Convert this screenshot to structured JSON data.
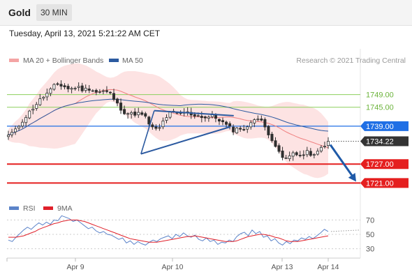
{
  "header": {
    "instrument": "Gold",
    "timeframe": "30 MIN",
    "datetime": "Tuesday, April 13, 2021 5:21:22 AM CET"
  },
  "legend": {
    "ma20": "MA 20 + Bollinger Bands",
    "ma50": "MA 50",
    "copyright": "Research © 2021 Trading Central",
    "rsi": "RSI",
    "rsi_ma": "9MA"
  },
  "colors": {
    "resistance": "#1f6fe5",
    "support": "#e51f1f",
    "pivot": "#333333",
    "green_level": "#8ccf5c",
    "ma20": "#f08080",
    "ma50": "#2c5aa0",
    "bollinger_fill": "#fde0e0",
    "candle_body": "#2f2f2f",
    "rsi_line": "#5b83c9",
    "rsi_ma_line": "#e0202a"
  },
  "chart_data": [
    {
      "type": "candlestick",
      "ylim": [
        1716,
        1752
      ],
      "x_tick_labels": [
        "Apr 9",
        "Apr 10",
        "Apr 13",
        "Apr 14"
      ],
      "grid": false,
      "legend_position": "top-left",
      "price_levels": [
        {
          "label": "1749.00",
          "value": 1749.0,
          "style": "green"
        },
        {
          "label": "1745.00",
          "value": 1745.0,
          "style": "green"
        },
        {
          "label": "1739.00",
          "value": 1739.0,
          "style": "resistance"
        },
        {
          "label": "1734.22",
          "value": 1734.22,
          "style": "last-price"
        },
        {
          "label": "1727.00",
          "value": 1727.0,
          "style": "support"
        },
        {
          "label": "1721.00",
          "value": 1721.0,
          "style": "support"
        }
      ],
      "close_path": [
        1736.2,
        1737.5,
        1740.6,
        1743.2,
        1745.8,
        1748.1,
        1749.9,
        1752.3,
        1751.8,
        1750.6,
        1751.5,
        1750.5,
        1751.0,
        1749.7,
        1750.1,
        1749.3,
        1745.9,
        1743.5,
        1742.8,
        1743.1,
        1742.2,
        1738.6,
        1737.6,
        1741.5,
        1743.4,
        1742.7,
        1743.5,
        1742.7,
        1742.3,
        1741.7,
        1742.1,
        1741.0,
        1739.3,
        1737.7,
        1738.5,
        1737.9,
        1741.7,
        1741.1,
        1737.6,
        1734.0,
        1729.3,
        1728.6,
        1731.0,
        1729.4,
        1730.8,
        1729.5,
        1732.2,
        1734.22
      ],
      "patterns": [
        {
          "name": "symmetrical-triangle",
          "upper_line": [
            [
              0.44,
              1743.9
            ],
            [
              0.68,
              1742.3
            ]
          ],
          "lower_line": [
            [
              0.4,
              1730.2
            ],
            [
              0.67,
              1738.8
            ]
          ]
        }
      ],
      "forecast_arrow": {
        "from": 1734.0,
        "to": 1721.0
      }
    },
    {
      "type": "line",
      "ylim": [
        15,
        85
      ],
      "tick_labels": [
        "70",
        "50",
        "30"
      ],
      "y_ticks": [
        70,
        50,
        30
      ],
      "series": [
        {
          "name": "RSI",
          "values": [
            42,
            40,
            46,
            51,
            56,
            60,
            57,
            62,
            66,
            63,
            67,
            64,
            70,
            69,
            76,
            74,
            72,
            68,
            70,
            66,
            62,
            58,
            60,
            55,
            52,
            54,
            50,
            49,
            46,
            43,
            45,
            38,
            41,
            36,
            40,
            37,
            35,
            39,
            42,
            40,
            44,
            46,
            48,
            44,
            50,
            47,
            52,
            48,
            46,
            49,
            43,
            41,
            45,
            40,
            42,
            36,
            39,
            38,
            42,
            40,
            47,
            51,
            53,
            48,
            56,
            51,
            54,
            46,
            48,
            41,
            44,
            38,
            35,
            40,
            37,
            42,
            41,
            45,
            43,
            47,
            44,
            48,
            52,
            57,
            54
          ]
        },
        {
          "name": "9MA",
          "values": [
            46,
            46,
            46,
            47,
            48,
            50,
            52,
            54,
            57,
            59,
            61,
            63,
            65,
            66,
            68,
            69,
            70,
            70,
            70,
            69,
            68,
            66,
            64,
            62,
            60,
            58,
            56,
            54,
            52,
            50,
            48,
            46,
            44,
            43,
            42,
            41,
            40,
            39,
            39,
            39,
            40,
            41,
            42,
            43,
            44,
            45,
            46,
            47,
            47,
            48,
            47,
            46,
            45,
            44,
            43,
            42,
            41,
            40,
            40,
            40,
            41,
            43,
            45,
            47,
            48,
            49,
            50,
            50,
            49,
            48,
            46,
            45,
            43,
            41,
            40,
            40,
            40,
            41,
            42,
            43,
            44,
            45,
            46,
            47,
            48
          ]
        }
      ]
    }
  ]
}
